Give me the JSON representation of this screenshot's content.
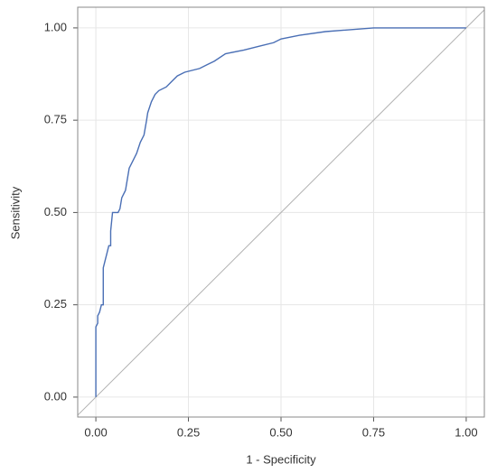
{
  "chart_data": {
    "type": "line",
    "x_label": "1 - Specificity",
    "y_label": "Sensitivity",
    "x": [
      0,
      0,
      0.005,
      0.005,
      0.01,
      0.015,
      0.02,
      0.02,
      0.025,
      0.03,
      0.035,
      0.04,
      0.04,
      0.045,
      0.06,
      0.065,
      0.07,
      0.08,
      0.085,
      0.09,
      0.1,
      0.11,
      0.12,
      0.13,
      0.137,
      0.14,
      0.15,
      0.16,
      0.17,
      0.19,
      0.2,
      0.21,
      0.22,
      0.24,
      0.28,
      0.3,
      0.32,
      0.35,
      0.4,
      0.44,
      0.48,
      0.5,
      0.55,
      0.62,
      0.75,
      1.0
    ],
    "series": [
      {
        "color": "#4a6fb5",
        "values": [
          0,
          0.19,
          0.2,
          0.22,
          0.23,
          0.25,
          0.25,
          0.35,
          0.37,
          0.39,
          0.41,
          0.41,
          0.45,
          0.5,
          0.5,
          0.51,
          0.54,
          0.56,
          0.59,
          0.62,
          0.64,
          0.66,
          0.69,
          0.71,
          0.75,
          0.77,
          0.8,
          0.82,
          0.83,
          0.84,
          0.85,
          0.86,
          0.87,
          0.88,
          0.89,
          0.9,
          0.91,
          0.93,
          0.94,
          0.95,
          0.96,
          0.97,
          0.98,
          0.99,
          1.0,
          1.0
        ]
      }
    ],
    "xlim": [
      -0.049,
      1.049
    ],
    "ylim": [
      -0.054,
      1.056
    ],
    "xticks": [
      {
        "value": 0,
        "label": "0.00"
      },
      {
        "value": 0.25,
        "label": "0.25"
      },
      {
        "value": 0.5,
        "label": "0.50"
      },
      {
        "value": 0.75,
        "label": "0.75"
      },
      {
        "value": 1,
        "label": "1.00"
      }
    ],
    "yticks": [
      {
        "value": 0,
        "label": "0.00"
      },
      {
        "value": 0.25,
        "label": "0.25"
      },
      {
        "value": 0.5,
        "label": "0.50"
      },
      {
        "value": 0.75,
        "label": "0.75"
      },
      {
        "value": 1,
        "label": "1.00"
      }
    ],
    "grid": true,
    "reference_line_color": "#b0b0b0"
  }
}
